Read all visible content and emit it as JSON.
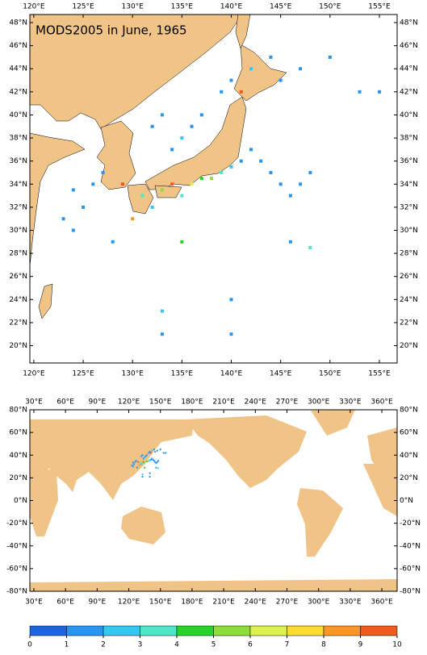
{
  "maps": [
    {
      "title": "MODS2005 in June, 1965",
      "lon_range": [
        119.6,
        156.8
      ],
      "lat_range": [
        18.5,
        48.7
      ],
      "lon_ticks": [
        {
          "value": 120,
          "label": "120°E"
        },
        {
          "value": 125,
          "label": "125°E"
        },
        {
          "value": 130,
          "label": "130°E"
        },
        {
          "value": 135,
          "label": "135°E"
        },
        {
          "value": 140,
          "label": "140°E"
        },
        {
          "value": 145,
          "label": "145°E"
        },
        {
          "value": 150,
          "label": "150°E"
        },
        {
          "value": 155,
          "label": "155°E"
        }
      ],
      "lat_ticks": [
        {
          "value": 20,
          "label": "20°N"
        },
        {
          "value": 22,
          "label": "22°N"
        },
        {
          "value": 24,
          "label": "24°N"
        },
        {
          "value": 26,
          "label": "26°N"
        },
        {
          "value": 28,
          "label": "28°N"
        },
        {
          "value": 30,
          "label": "30°N"
        },
        {
          "value": 32,
          "label": "32°N"
        },
        {
          "value": 34,
          "label": "34°N"
        },
        {
          "value": 36,
          "label": "36°N"
        },
        {
          "value": 38,
          "label": "38°N"
        },
        {
          "value": 40,
          "label": "40°N"
        },
        {
          "value": 42,
          "label": "42°N"
        },
        {
          "value": 44,
          "label": "44°N"
        },
        {
          "value": 46,
          "label": "46°N"
        },
        {
          "value": 48,
          "label": "48°N"
        }
      ]
    },
    {
      "lon_range": [
        26.2,
        374.5
      ],
      "lat_range": [
        -80,
        80
      ],
      "lon_ticks": [
        {
          "value": 30,
          "label": "30°E"
        },
        {
          "value": 60,
          "label": "60°E"
        },
        {
          "value": 90,
          "label": "90°E"
        },
        {
          "value": 120,
          "label": "120°E"
        },
        {
          "value": 150,
          "label": "150°E"
        },
        {
          "value": 180,
          "label": "180°E"
        },
        {
          "value": 210,
          "label": "210°E"
        },
        {
          "value": 240,
          "label": "240°E"
        },
        {
          "value": 270,
          "label": "270°E"
        },
        {
          "value": 300,
          "label": "300°E"
        },
        {
          "value": 330,
          "label": "330°E"
        },
        {
          "value": 360,
          "label": "360°E"
        }
      ],
      "lat_ticks": [
        {
          "value": -80,
          "label": "-80°N"
        },
        {
          "value": -60,
          "label": "-60°N"
        },
        {
          "value": -40,
          "label": "-40°N"
        },
        {
          "value": -20,
          "label": "-20°N"
        },
        {
          "value": 0,
          "label": "0°N"
        },
        {
          "value": 20,
          "label": "20°N"
        },
        {
          "value": 40,
          "label": "40°N"
        },
        {
          "value": 60,
          "label": "60°N"
        },
        {
          "value": 80,
          "label": "80°N"
        }
      ]
    }
  ],
  "observations": {
    "lon": [
      124,
      125,
      126,
      127,
      123,
      124,
      128,
      129,
      130,
      131,
      132,
      133,
      134,
      135,
      136,
      137,
      138,
      139,
      140,
      141,
      142,
      143,
      144,
      145,
      146,
      147,
      148,
      134,
      135,
      136,
      132,
      133,
      137,
      139,
      140,
      141,
      142,
      144,
      145,
      147,
      150,
      153,
      155,
      133,
      133,
      140,
      140,
      146,
      148,
      135
    ],
    "lat": [
      33.5,
      32,
      34,
      35,
      31,
      30,
      29,
      34,
      31,
      33,
      32,
      33.5,
      34,
      33,
      34,
      34.5,
      34.5,
      35,
      35.5,
      36,
      37,
      36,
      35,
      34,
      33,
      34,
      35,
      37,
      38,
      39,
      39,
      40,
      40,
      42,
      43,
      42,
      44,
      45,
      43,
      44,
      45,
      42,
      42,
      23,
      21,
      24,
      21,
      29,
      28.5,
      29
    ],
    "value": [
      1,
      1,
      1,
      1,
      1,
      1,
      1,
      9,
      8,
      3,
      2,
      5,
      9,
      3,
      6,
      4,
      5,
      3,
      2,
      1,
      1,
      1,
      1,
      1,
      1,
      1,
      1,
      1,
      2,
      1,
      1,
      1,
      1,
      1,
      1,
      9,
      2,
      1,
      1,
      1,
      1,
      1,
      1,
      2,
      1,
      1,
      1,
      1,
      3,
      4
    ]
  },
  "colorbar": {
    "ticks": [
      0,
      1,
      2,
      3,
      4,
      5,
      6,
      7,
      8,
      9,
      10
    ],
    "colors": [
      "#1e64dc",
      "#2896f0",
      "#32c8f0",
      "#50e6c8",
      "#28d228",
      "#8cdc3c",
      "#dcf050",
      "#fadc32",
      "#fa9628",
      "#f05a1e"
    ]
  }
}
